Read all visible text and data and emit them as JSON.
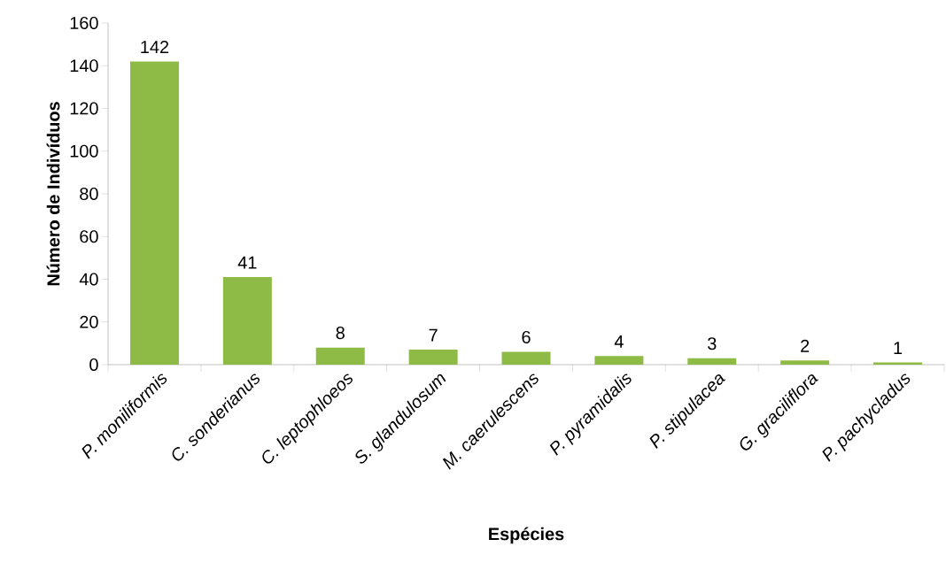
{
  "chart_data": {
    "type": "bar",
    "xlabel": "Espécies",
    "ylabel": "Número de Indivíduos",
    "categories": [
      "P. moniliformis",
      "C. sonderianus",
      "C. leptophloeos",
      "S. glandulosum",
      "M. caerulescens",
      "P. pyramidalis",
      "P. stipulacea",
      "G. graciliflora",
      "P. pachycladus"
    ],
    "values": [
      142,
      41,
      8,
      7,
      6,
      4,
      3,
      2,
      1
    ],
    "color": "#8dbb45",
    "ylim": [
      0,
      160
    ],
    "yticks": [
      0,
      20,
      40,
      60,
      80,
      100,
      120,
      140,
      160
    ],
    "data_labels": true
  }
}
